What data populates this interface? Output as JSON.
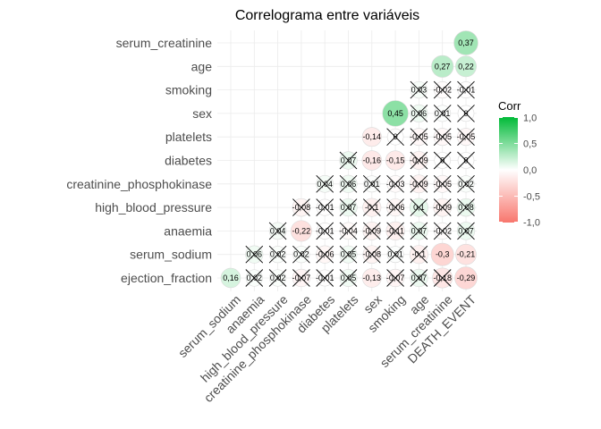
{
  "chart_data": {
    "type": "heatmap",
    "title": "Correlograma entre variáveis",
    "rows": [
      "serum_creatinine",
      "age",
      "smoking",
      "sex",
      "platelets",
      "diabetes",
      "creatinine_phosphokinase",
      "high_blood_pressure",
      "anaemia",
      "serum_sodium",
      "ejection_fraction"
    ],
    "columns": [
      "serum_sodium",
      "anaemia",
      "high_blood_pressure",
      "creatinine_phosphokinase",
      "diabetes",
      "platelets",
      "sex",
      "smoking",
      "age",
      "serum_creatinine",
      "DEATH_EVENT"
    ],
    "cells": [
      {
        "row": "serum_creatinine",
        "col": "DEATH_EVENT",
        "value": 0.37,
        "label": "0,37",
        "crossed": false
      },
      {
        "row": "age",
        "col": "serum_creatinine",
        "value": 0.27,
        "label": "0,27",
        "crossed": false
      },
      {
        "row": "age",
        "col": "DEATH_EVENT",
        "value": 0.22,
        "label": "0,22",
        "crossed": false
      },
      {
        "row": "smoking",
        "col": "age",
        "value": 0.03,
        "label": "0,03",
        "crossed": true
      },
      {
        "row": "smoking",
        "col": "serum_creatinine",
        "value": -0.02,
        "label": "-0,02",
        "crossed": true
      },
      {
        "row": "smoking",
        "col": "DEATH_EVENT",
        "value": -0.01,
        "label": "-0,01",
        "crossed": true
      },
      {
        "row": "sex",
        "col": "smoking",
        "value": 0.45,
        "label": "0,45",
        "crossed": false
      },
      {
        "row": "sex",
        "col": "age",
        "value": 0.06,
        "label": "0,06",
        "crossed": true
      },
      {
        "row": "sex",
        "col": "serum_creatinine",
        "value": 0.01,
        "label": "0,01",
        "crossed": true
      },
      {
        "row": "sex",
        "col": "DEATH_EVENT",
        "value": 0,
        "label": "0",
        "crossed": true
      },
      {
        "row": "platelets",
        "col": "sex",
        "value": -0.14,
        "label": "-0,14",
        "crossed": false
      },
      {
        "row": "platelets",
        "col": "smoking",
        "value": 0,
        "label": "0",
        "crossed": true
      },
      {
        "row": "platelets",
        "col": "age",
        "value": -0.05,
        "label": "-0,05",
        "crossed": true
      },
      {
        "row": "platelets",
        "col": "serum_creatinine",
        "value": -0.05,
        "label": "-0,05",
        "crossed": true
      },
      {
        "row": "platelets",
        "col": "DEATH_EVENT",
        "value": -0.05,
        "label": "-0,05",
        "crossed": true
      },
      {
        "row": "diabetes",
        "col": "platelets",
        "value": 0.07,
        "label": "0,07",
        "crossed": true
      },
      {
        "row": "diabetes",
        "col": "sex",
        "value": -0.16,
        "label": "-0,16",
        "crossed": false
      },
      {
        "row": "diabetes",
        "col": "smoking",
        "value": -0.15,
        "label": "-0,15",
        "crossed": false
      },
      {
        "row": "diabetes",
        "col": "age",
        "value": -0.09,
        "label": "-0,09",
        "crossed": true
      },
      {
        "row": "diabetes",
        "col": "serum_creatinine",
        "value": 0,
        "label": "0",
        "crossed": true
      },
      {
        "row": "diabetes",
        "col": "DEATH_EVENT",
        "value": 0,
        "label": "0",
        "crossed": true
      },
      {
        "row": "creatinine_phosphokinase",
        "col": "diabetes",
        "value": 0.04,
        "label": "0,04",
        "crossed": true
      },
      {
        "row": "creatinine_phosphokinase",
        "col": "platelets",
        "value": 0.06,
        "label": "0,06",
        "crossed": true
      },
      {
        "row": "creatinine_phosphokinase",
        "col": "sex",
        "value": 0.01,
        "label": "0,01",
        "crossed": true
      },
      {
        "row": "creatinine_phosphokinase",
        "col": "smoking",
        "value": -0.03,
        "label": "-0,03",
        "crossed": true
      },
      {
        "row": "creatinine_phosphokinase",
        "col": "age",
        "value": -0.09,
        "label": "-0,09",
        "crossed": true
      },
      {
        "row": "creatinine_phosphokinase",
        "col": "serum_creatinine",
        "value": -0.05,
        "label": "-0,05",
        "crossed": true
      },
      {
        "row": "creatinine_phosphokinase",
        "col": "DEATH_EVENT",
        "value": 0.02,
        "label": "0,02",
        "crossed": true
      },
      {
        "row": "high_blood_pressure",
        "col": "creatinine_phosphokinase",
        "value": -0.08,
        "label": "-0,08",
        "crossed": true
      },
      {
        "row": "high_blood_pressure",
        "col": "diabetes",
        "value": -0.01,
        "label": "-0,01",
        "crossed": true
      },
      {
        "row": "high_blood_pressure",
        "col": "platelets",
        "value": 0.07,
        "label": "0,07",
        "crossed": true
      },
      {
        "row": "high_blood_pressure",
        "col": "sex",
        "value": -0.1,
        "label": "-0,1",
        "crossed": true
      },
      {
        "row": "high_blood_pressure",
        "col": "smoking",
        "value": -0.06,
        "label": "-0,06",
        "crossed": true
      },
      {
        "row": "high_blood_pressure",
        "col": "age",
        "value": 0.1,
        "label": "0,1",
        "crossed": true
      },
      {
        "row": "high_blood_pressure",
        "col": "serum_creatinine",
        "value": -0.09,
        "label": "-0,09",
        "crossed": true
      },
      {
        "row": "high_blood_pressure",
        "col": "DEATH_EVENT",
        "value": 0.08,
        "label": "0,08",
        "crossed": true
      },
      {
        "row": "anaemia",
        "col": "high_blood_pressure",
        "value": 0.04,
        "label": "0,04",
        "crossed": true
      },
      {
        "row": "anaemia",
        "col": "creatinine_phosphokinase",
        "value": -0.22,
        "label": "-0,22",
        "crossed": false
      },
      {
        "row": "anaemia",
        "col": "diabetes",
        "value": -0.01,
        "label": "-0,01",
        "crossed": true
      },
      {
        "row": "anaemia",
        "col": "platelets",
        "value": -0.04,
        "label": "-0,04",
        "crossed": true
      },
      {
        "row": "anaemia",
        "col": "sex",
        "value": -0.09,
        "label": "-0,09",
        "crossed": true
      },
      {
        "row": "anaemia",
        "col": "smoking",
        "value": -0.11,
        "label": "-0,11",
        "crossed": true
      },
      {
        "row": "anaemia",
        "col": "age",
        "value": 0.07,
        "label": "0,07",
        "crossed": true
      },
      {
        "row": "anaemia",
        "col": "serum_creatinine",
        "value": -0.02,
        "label": "-0,02",
        "crossed": true
      },
      {
        "row": "anaemia",
        "col": "DEATH_EVENT",
        "value": 0.07,
        "label": "0,07",
        "crossed": true
      },
      {
        "row": "serum_sodium",
        "col": "anaemia",
        "value": 0.06,
        "label": "0,06",
        "crossed": true
      },
      {
        "row": "serum_sodium",
        "col": "high_blood_pressure",
        "value": 0.02,
        "label": "0,02",
        "crossed": true
      },
      {
        "row": "serum_sodium",
        "col": "creatinine_phosphokinase",
        "value": 0.02,
        "label": "0,02",
        "crossed": true
      },
      {
        "row": "serum_sodium",
        "col": "diabetes",
        "value": -0.06,
        "label": "-0,06",
        "crossed": true
      },
      {
        "row": "serum_sodium",
        "col": "platelets",
        "value": 0.05,
        "label": "0,05",
        "crossed": true
      },
      {
        "row": "serum_sodium",
        "col": "sex",
        "value": -0.08,
        "label": "-0,08",
        "crossed": true
      },
      {
        "row": "serum_sodium",
        "col": "smoking",
        "value": 0.01,
        "label": "0,01",
        "crossed": true
      },
      {
        "row": "serum_sodium",
        "col": "age",
        "value": -0.1,
        "label": "-0,1",
        "crossed": true
      },
      {
        "row": "serum_sodium",
        "col": "serum_creatinine",
        "value": -0.3,
        "label": "-0,3",
        "crossed": false
      },
      {
        "row": "serum_sodium",
        "col": "DEATH_EVENT",
        "value": -0.21,
        "label": "-0,21",
        "crossed": false
      },
      {
        "row": "ejection_fraction",
        "col": "serum_sodium",
        "value": 0.16,
        "label": "0,16",
        "crossed": false
      },
      {
        "row": "ejection_fraction",
        "col": "anaemia",
        "value": 0.02,
        "label": "0,02",
        "crossed": true
      },
      {
        "row": "ejection_fraction",
        "col": "high_blood_pressure",
        "value": 0.02,
        "label": "0,02",
        "crossed": true
      },
      {
        "row": "ejection_fraction",
        "col": "creatinine_phosphokinase",
        "value": -0.07,
        "label": "-0,07",
        "crossed": true
      },
      {
        "row": "ejection_fraction",
        "col": "diabetes",
        "value": -0.01,
        "label": "-0,01",
        "crossed": true
      },
      {
        "row": "ejection_fraction",
        "col": "platelets",
        "value": 0.05,
        "label": "0,05",
        "crossed": true
      },
      {
        "row": "ejection_fraction",
        "col": "sex",
        "value": -0.13,
        "label": "-0,13",
        "crossed": false
      },
      {
        "row": "ejection_fraction",
        "col": "smoking",
        "value": -0.07,
        "label": "-0,07",
        "crossed": true
      },
      {
        "row": "ejection_fraction",
        "col": "age",
        "value": 0.07,
        "label": "0,07",
        "crossed": true
      },
      {
        "row": "ejection_fraction",
        "col": "serum_creatinine",
        "value": -0.18,
        "label": "-0,18",
        "crossed": true
      },
      {
        "row": "ejection_fraction",
        "col": "DEATH_EVENT",
        "value": -0.29,
        "label": "-0,29",
        "crossed": false
      }
    ],
    "legend": {
      "title": "Corr",
      "position": "right",
      "range": [
        -1,
        1
      ],
      "ticks": [
        1.0,
        0.5,
        0.0,
        -0.5,
        -1.0
      ],
      "tick_labels": [
        "1,0",
        "0,5",
        "0,0",
        "-0,5",
        "-1,0"
      ],
      "colors": {
        "low": "#f8766d",
        "mid": "#ffffff",
        "high": "#00ba38"
      }
    },
    "grid": true
  }
}
